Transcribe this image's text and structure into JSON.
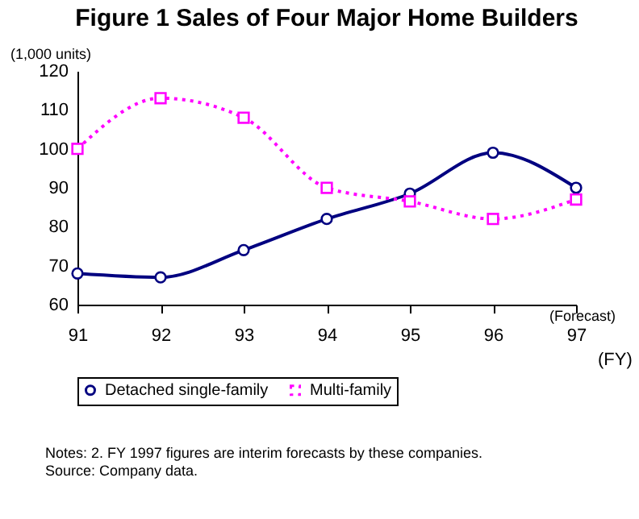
{
  "chart_data": {
    "type": "line",
    "title": "Figure 1  Sales of Four Major Home Builders",
    "ylabel": "(1,000 units)",
    "xlabel": "(FY)",
    "categories": [
      "91",
      "92",
      "93",
      "94",
      "95",
      "96",
      "97"
    ],
    "series": [
      {
        "name": "Detached single-family",
        "color": "#000080",
        "line_style": "solid",
        "marker": "circle",
        "values": [
          68,
          67,
          74,
          82,
          88.5,
          99,
          90
        ]
      },
      {
        "name": "Multi-family",
        "color": "#ff00ff",
        "line_style": "dotted",
        "marker": "square",
        "values": [
          100,
          113,
          108,
          90,
          86.5,
          82,
          87
        ]
      }
    ],
    "ylim": [
      60,
      120
    ],
    "yticks": [
      60,
      70,
      80,
      90,
      100,
      110,
      120
    ],
    "grid": false,
    "legend": "bottom",
    "annotations": [
      "(Forecast)",
      "Notes: 2. FY 1997 figures are interim forecasts by these companies.",
      "Source: Company data."
    ]
  }
}
